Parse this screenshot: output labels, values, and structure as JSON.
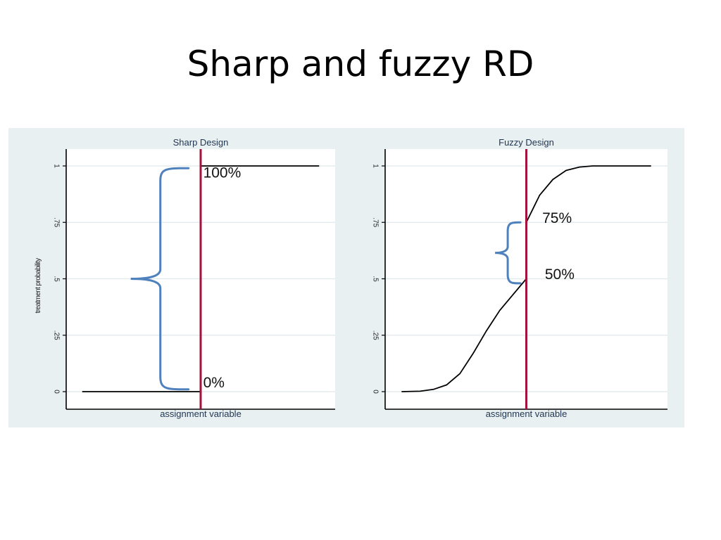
{
  "slide": {
    "title": "Sharp and fuzzy RD"
  },
  "colors": {
    "panel_bg": "#e9f0f2",
    "plot_bg": "#ffffff",
    "grid": "#dfe8eb",
    "curve": "#000000",
    "cutoff_line": "#a3123c",
    "brace": "#4f81bd"
  },
  "chart_data": [
    {
      "type": "line",
      "title": "Sharp Design",
      "xlabel": "assignment variable",
      "ylabel": "treatment probability",
      "ylim": [
        0,
        1
      ],
      "yticks": [
        0,
        0.25,
        0.5,
        0.75,
        1
      ],
      "ytick_labels": [
        "0",
        ".25",
        ".5",
        ".75",
        "1"
      ],
      "xlim": [
        0,
        1
      ],
      "cutoff": 0.5,
      "series": [
        {
          "x": [
            0.03,
            0.5,
            0.5,
            0.97
          ],
          "y": [
            0,
            0,
            1,
            1
          ]
        }
      ],
      "annotations": [
        {
          "text": "100%",
          "x": 0.51,
          "y": 0.97
        },
        {
          "text": "0%",
          "x": 0.51,
          "y": 0.04
        }
      ],
      "brace": {
        "y_from": 0.01,
        "y_to": 0.99,
        "x": 0.34
      },
      "grid": true
    },
    {
      "type": "line",
      "title": "Fuzzy Design",
      "xlabel": "assignment variable",
      "ylabel": "",
      "ylim": [
        0,
        1
      ],
      "yticks": [
        0,
        0.25,
        0.5,
        0.75,
        1
      ],
      "ytick_labels": [
        "0",
        ".25",
        ".5",
        ".75",
        "1"
      ],
      "xlim": [
        0,
        1
      ],
      "cutoff": 0.5,
      "series": [
        {
          "x": [
            0.03,
            0.1,
            0.15,
            0.2,
            0.25,
            0.3,
            0.35,
            0.4,
            0.45,
            0.5,
            0.5,
            0.55,
            0.6,
            0.65,
            0.7,
            0.75,
            0.8,
            0.85,
            0.9,
            0.97
          ],
          "y": [
            0,
            0.002,
            0.01,
            0.03,
            0.08,
            0.17,
            0.27,
            0.36,
            0.43,
            0.5,
            0.75,
            0.87,
            0.94,
            0.98,
            0.995,
            1,
            1,
            1,
            1,
            1
          ]
        }
      ],
      "annotations": [
        {
          "text": "75%",
          "x": 0.56,
          "y": 0.77
        },
        {
          "text": "50%",
          "x": 0.57,
          "y": 0.52
        }
      ],
      "brace": {
        "y_from": 0.48,
        "y_to": 0.75,
        "x": 0.43
      },
      "grid": true
    }
  ]
}
